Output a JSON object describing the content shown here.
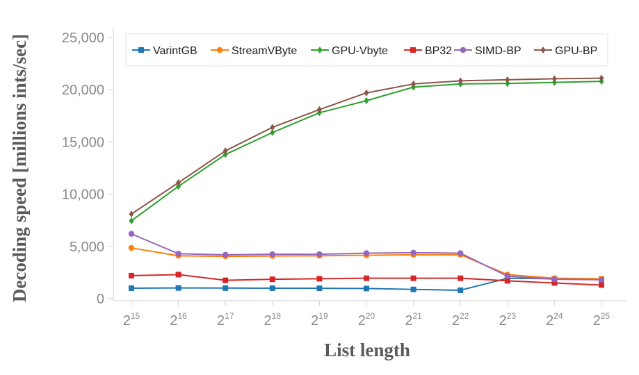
{
  "chart_data": {
    "type": "line",
    "xlabel": "List length",
    "ylabel": "Decoding speed [millions ints/sec]",
    "x_base": "2",
    "x_exponents": [
      "15",
      "16",
      "17",
      "18",
      "19",
      "20",
      "21",
      "22",
      "23",
      "24",
      "25"
    ],
    "y_ticks": [
      "0",
      "5,000",
      "10,000",
      "15,000",
      "20,000",
      "25,000"
    ],
    "y_tick_values": [
      0,
      5000,
      10000,
      15000,
      20000,
      25000
    ],
    "ylim": [
      0,
      25000
    ],
    "grid": false,
    "legend_position": "top",
    "series": [
      {
        "name": "VarintGB",
        "color": "#1f77b4",
        "marker": "square",
        "values": [
          1000,
          1020,
          1010,
          1000,
          990,
          970,
          880,
          800,
          1950,
          1900,
          1850
        ]
      },
      {
        "name": "StreamVByte",
        "color": "#ff7f0e",
        "marker": "circle",
        "values": [
          4850,
          4100,
          4050,
          4080,
          4100,
          4150,
          4200,
          4200,
          2300,
          1950,
          1900
        ]
      },
      {
        "name": "GPU-Vbyte",
        "color": "#2ca02c",
        "marker": "diamond",
        "values": [
          7450,
          10750,
          13800,
          15900,
          17800,
          18950,
          20250,
          20550,
          20600,
          20700,
          20800
        ]
      },
      {
        "name": "BP32",
        "color": "#d62728",
        "marker": "square",
        "values": [
          2200,
          2300,
          1750,
          1850,
          1900,
          1950,
          1950,
          1950,
          1700,
          1500,
          1300
        ]
      },
      {
        "name": "SIMD-BP",
        "color": "#9467bd",
        "marker": "circle",
        "values": [
          6200,
          4300,
          4200,
          4250,
          4250,
          4350,
          4400,
          4350,
          2150,
          1850,
          1800
        ]
      },
      {
        "name": "GPU-BP",
        "color": "#8c564b",
        "marker": "diamond",
        "values": [
          8100,
          11100,
          14150,
          16400,
          18100,
          19700,
          20550,
          20850,
          20950,
          21050,
          21100
        ]
      }
    ]
  }
}
